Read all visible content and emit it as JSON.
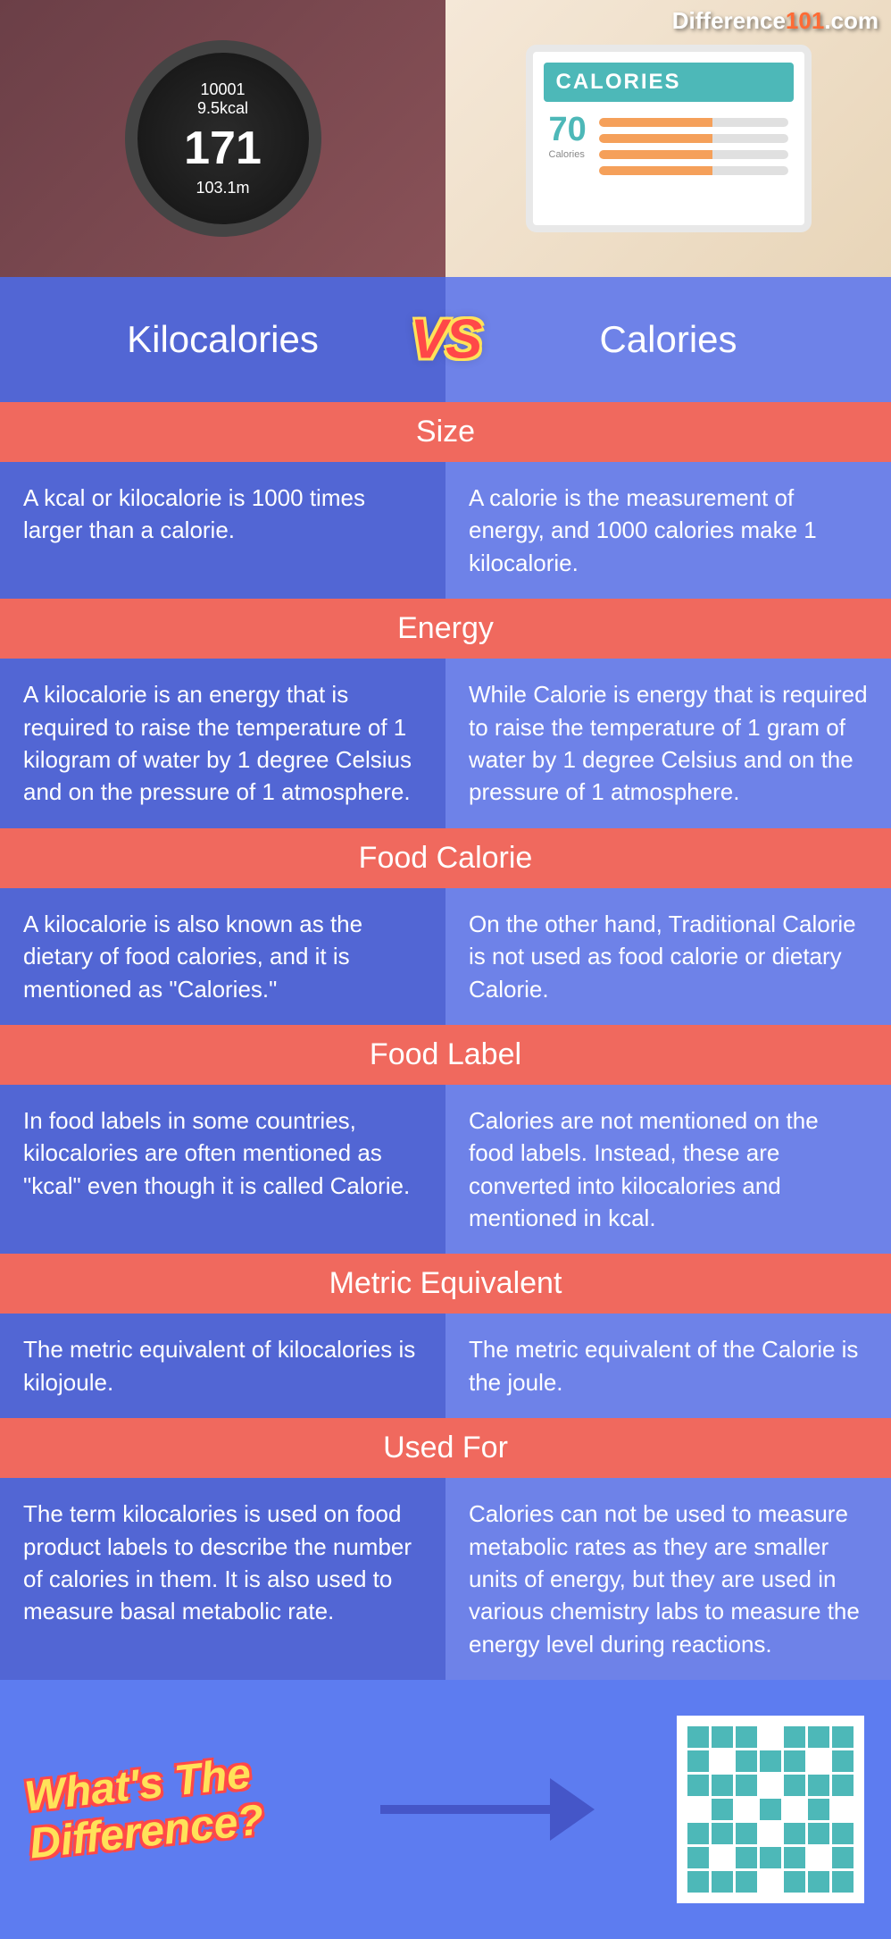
{
  "site_logo": {
    "text_white": "Difference",
    "text_orange": "101",
    "text_suffix": ".com"
  },
  "hero": {
    "watch": {
      "line1": "10001",
      "line2": "9.5kcal",
      "big": "171",
      "line3": "103.1m"
    },
    "tablet": {
      "header": "CALORIES",
      "number": "70",
      "sub": "Calories"
    }
  },
  "vs": {
    "left": "Kilocalories",
    "right": "Calories",
    "badge": "VS"
  },
  "sections": [
    {
      "header": "Size",
      "left": "A kcal or kilocalorie is 1000 times larger than a calorie.",
      "right": "A calorie is the measurement of energy, and 1000 calories make 1 kilocalorie."
    },
    {
      "header": "Energy",
      "left": "A kilocalorie is an energy that is required to raise the temperature of 1 kilogram of water by 1 degree Celsius and on the pressure of 1 atmosphere.",
      "right": "While Calorie is energy that is required to raise the temperature of 1 gram of water by 1 degree Celsius and on the pressure of 1 atmosphere."
    },
    {
      "header": "Food Calorie",
      "left": "A kilocalorie is also known as the dietary of food calories, and it is mentioned as \"Calories.\"",
      "right": "On the other hand, Traditional Calorie is not used as food calorie or dietary Calorie."
    },
    {
      "header": "Food Label",
      "left": "In food labels in some countries, kilocalories are often mentioned as \"kcal\" even though it is called Calorie.",
      "right": "Calories are not mentioned on the food labels. Instead, these are converted into kilocalories and mentioned in kcal."
    },
    {
      "header": "Metric Equivalent",
      "left": "The metric equivalent of kilocalories is kilojoule.",
      "right": "The metric equivalent of the Calorie is the joule."
    },
    {
      "header": "Used For",
      "left": "The term kilocalories is used on food product labels to describe the number of calories in them. It is also used to measure basal metabolic rate.",
      "right": "Calories can not be used to measure metabolic rates as they are smaller units of energy, but they are used in various chemistry labs to measure the energy level during reactions."
    }
  ],
  "footer": {
    "line1": "What's The",
    "line2": "Difference?"
  },
  "colors": {
    "header_bg": "#f0695e",
    "left_bg": "#5266d4",
    "right_bg": "#6e82e8",
    "page_bg": "#5d7cf0",
    "accent_yellow": "#ffe259",
    "accent_red": "#ff4848",
    "teal": "#4db8b8"
  }
}
